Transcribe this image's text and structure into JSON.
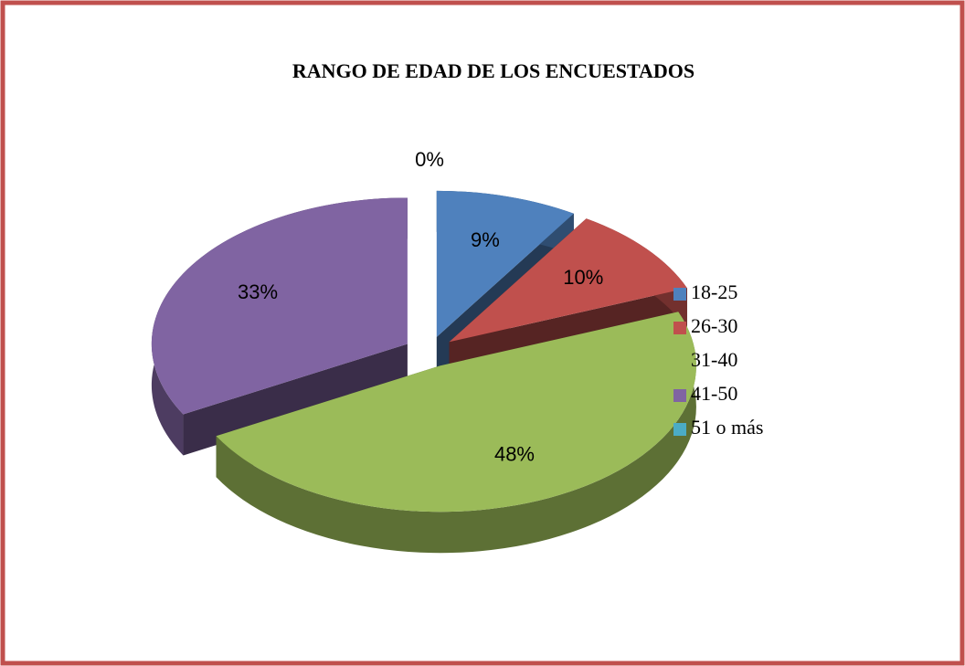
{
  "chart_data": {
    "type": "pie",
    "title": "RANGO DE EDAD DE LOS ENCUESTADOS",
    "categories": [
      "18-25",
      "26-30",
      "31-40",
      "41-50",
      "51 o más"
    ],
    "values": [
      9,
      10,
      48,
      33,
      0
    ],
    "value_labels": [
      "9%",
      "10%",
      "48%",
      "33%",
      "0%"
    ],
    "colors": [
      "#4f81bd",
      "#c0504d",
      "#9bbb59",
      "#8064a2",
      "#4bacc6"
    ],
    "legend": "right",
    "style": "3d-exploded"
  }
}
